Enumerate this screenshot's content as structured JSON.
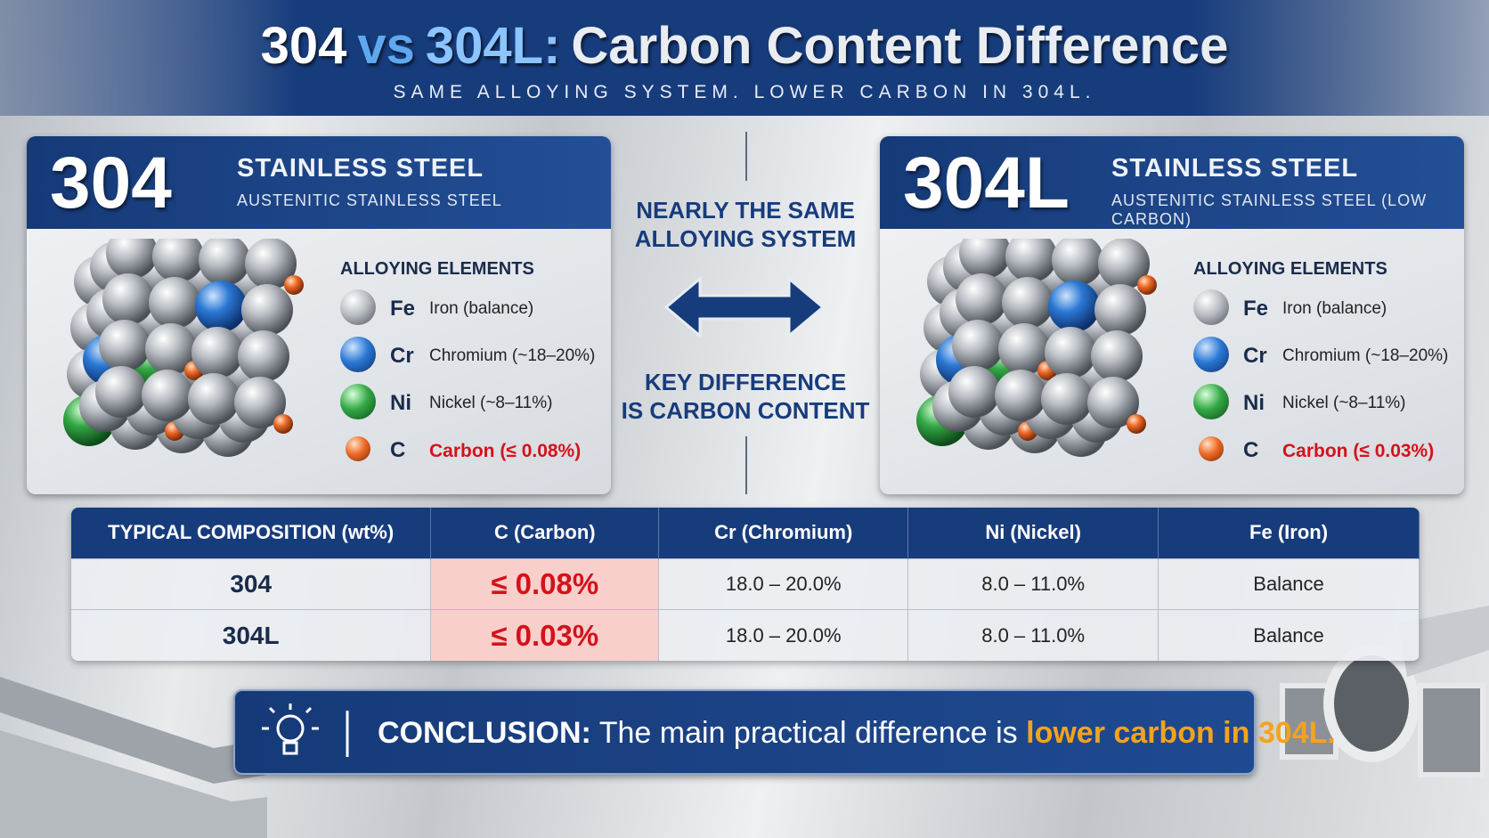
{
  "header": {
    "title": {
      "part1": "304",
      "part2": "vs",
      "part3": "304L:",
      "part4": "Carbon Content Difference"
    },
    "subtitle": "SAME ALLOYING SYSTEM. LOWER CARBON IN 304L."
  },
  "cards": [
    {
      "grade": "304",
      "title": "STAINLESS STEEL",
      "subtitle": "AUSTENITIC STAINLESS STEEL",
      "list_heading": "ALLOYING ELEMENTS",
      "elements": [
        {
          "symbol": "Fe",
          "label": "Iron (balance)"
        },
        {
          "symbol": "Cr",
          "label": "Chromium (~18–20%)"
        },
        {
          "symbol": "Ni",
          "label": "Nickel (~8–11%)"
        },
        {
          "symbol": "C",
          "label": "Carbon (≤ 0.08%)"
        }
      ]
    },
    {
      "grade": "304L",
      "title": "STAINLESS STEEL",
      "subtitle": "AUSTENITIC STAINLESS STEEL (LOW CARBON)",
      "list_heading": "ALLOYING ELEMENTS",
      "elements": [
        {
          "symbol": "Fe",
          "label": "Iron (balance)"
        },
        {
          "symbol": "Cr",
          "label": "Chromium (~18–20%)"
        },
        {
          "symbol": "Ni",
          "label": "Nickel (~8–11%)"
        },
        {
          "symbol": "C",
          "label": "Carbon (≤ 0.03%)"
        }
      ]
    }
  ],
  "middle": {
    "top": [
      "NEARLY THE SAME",
      "ALLOYING SYSTEM"
    ],
    "bottom": [
      "KEY DIFFERENCE",
      "IS CARBON CONTENT"
    ]
  },
  "table": {
    "header": [
      "TYPICAL COMPOSITION (wt%)",
      "C (Carbon)",
      "Cr (Chromium)",
      "Ni (Nickel)",
      "Fe (Iron)"
    ],
    "rows": [
      [
        "304",
        "≤ 0.08%",
        "18.0 – 20.0%",
        "8.0 – 11.0%",
        "Balance"
      ],
      [
        "304L",
        "≤ 0.03%",
        "18.0 – 20.0%",
        "8.0 – 11.0%",
        "Balance"
      ]
    ]
  },
  "conclusion": {
    "label": "CONCLUSION:",
    "text": "The main practical difference is",
    "highlight": "lower carbon in 304L."
  }
}
